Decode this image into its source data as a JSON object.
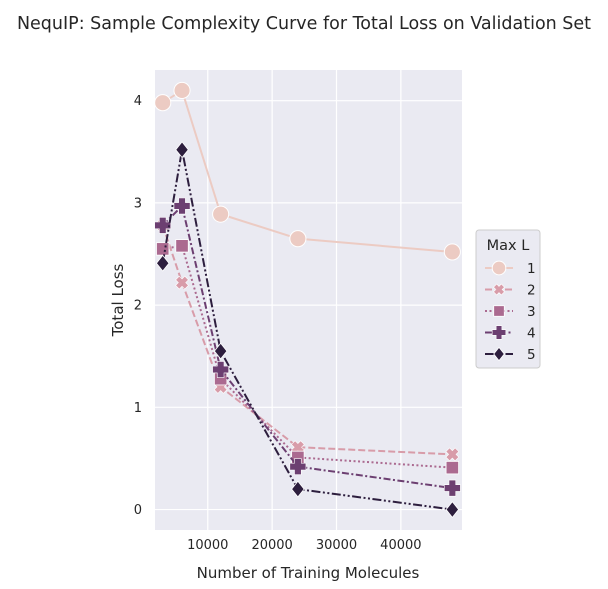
{
  "chart_data": {
    "type": "line",
    "title": "NequIP: Sample Complexity Curve for Total Loss on Validation Set",
    "xlabel": "Number of Training Molecules",
    "ylabel": "Total Loss",
    "xlim": [
      1800,
      49500
    ],
    "ylim": [
      -0.2,
      4.3
    ],
    "x_ticks": [
      10000,
      20000,
      30000,
      40000
    ],
    "y_ticks": [
      0,
      1,
      2,
      3,
      4
    ],
    "grid": true,
    "background": "#eaeaf2",
    "legend": {
      "title": "Max L",
      "placement": "right"
    },
    "series": [
      {
        "name": "1",
        "color": "#eccbc3",
        "dash": "solid",
        "marker": "circle",
        "x": [
          3000,
          6000,
          12000,
          24000,
          48000
        ],
        "y": [
          3.98,
          4.1,
          2.89,
          2.65,
          2.52
        ]
      },
      {
        "name": "2",
        "color": "#d89ca9",
        "dash": "dashed",
        "marker": "x",
        "x": [
          3000,
          6000,
          12000,
          24000,
          48000
        ],
        "y": [
          2.78,
          2.22,
          1.2,
          0.61,
          0.54
        ]
      },
      {
        "name": "3",
        "color": "#ab6a90",
        "dash": "dotted",
        "marker": "square",
        "x": [
          3000,
          6000,
          12000,
          24000,
          48000
        ],
        "y": [
          2.55,
          2.58,
          1.28,
          0.51,
          0.41
        ]
      },
      {
        "name": "4",
        "color": "#6c3f71",
        "dash": "dashdot",
        "marker": "plus",
        "x": [
          3000,
          6000,
          12000,
          24000,
          48000
        ],
        "y": [
          2.78,
          2.97,
          1.37,
          0.42,
          0.21
        ]
      },
      {
        "name": "5",
        "color": "#2d1e3e",
        "dash": "dashdotdot",
        "marker": "diamond",
        "x": [
          3000,
          6000,
          12000,
          24000,
          48000
        ],
        "y": [
          2.41,
          3.52,
          1.55,
          0.2,
          0.0
        ]
      }
    ]
  }
}
